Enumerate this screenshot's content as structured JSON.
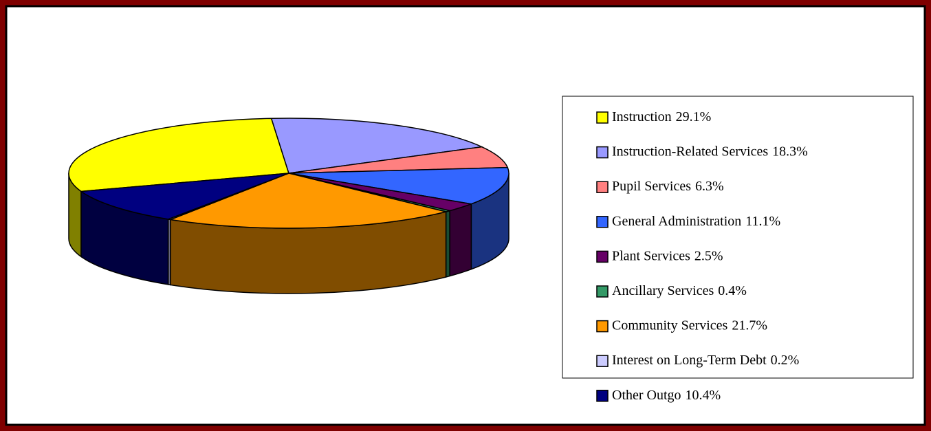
{
  "chart_data": {
    "type": "pie3d",
    "categories": [
      "Instruction",
      "Instruction-Related Services",
      "Pupil Services",
      "General Administration",
      "Plant Services",
      "Ancillary Services",
      "Community Services",
      "Interest on Long-Term Debt",
      "Other Outgo"
    ],
    "values": [
      29.1,
      18.3,
      6.3,
      11.1,
      2.5,
      0.4,
      21.7,
      0.2,
      10.4
    ],
    "value_labels": [
      "29.1%",
      "18.3%",
      "6.3%",
      "11.1%",
      "2.5%",
      "0.4%",
      "21.7%",
      "0.2%",
      "10.4%"
    ],
    "colors": [
      "#ffff00",
      "#9999ff",
      "#ff8080",
      "#3366ff",
      "#660066",
      "#339966",
      "#ff9900",
      "#ccccff",
      "#000080"
    ],
    "legend": "right"
  }
}
